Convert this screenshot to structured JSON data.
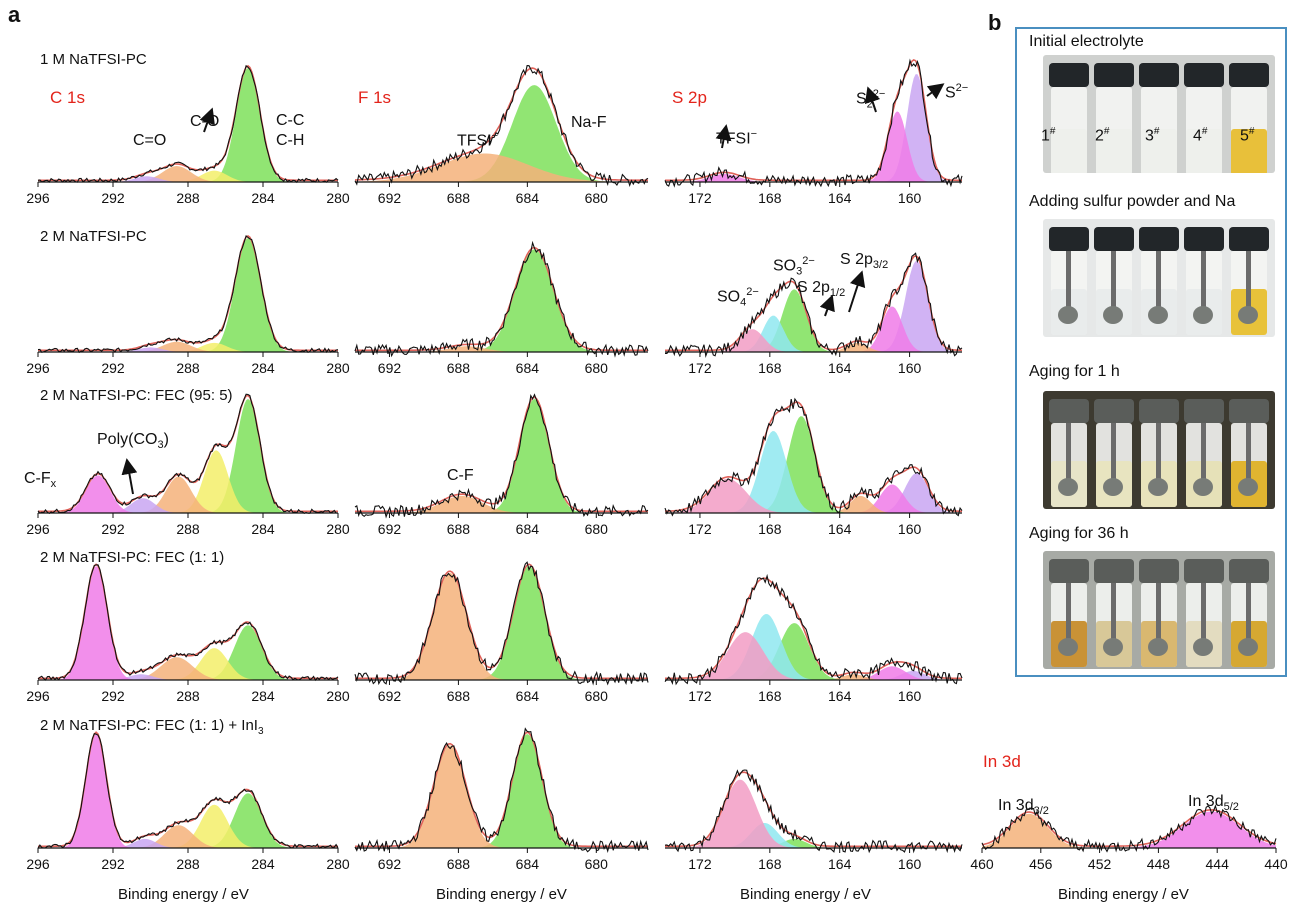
{
  "figure": {
    "panel_a": "a",
    "panel_b": "b"
  },
  "rows": [
    {
      "title": "1 M NaTFSI-PC"
    },
    {
      "title": "2 M NaTFSI-PC"
    },
    {
      "title": "2 M NaTFSI-PC: FEC (95: 5)"
    },
    {
      "title": "2 M NaTFSI-PC: FEC (1: 1)"
    },
    {
      "title": "2 M NaTFSI-PC: FEC (1: 1) + InI",
      "title_sub": "3"
    }
  ],
  "core_labels": {
    "c1s": "C 1s",
    "f1s": "F 1s",
    "s2p": "S 2p",
    "in3d": "In 3d"
  },
  "annotations": {
    "c_eq_o": "C=O",
    "c_o": "C-O",
    "c_c": "C-C",
    "c_h": "C-H",
    "tfsi": "TFSI",
    "tfsi_sup": "−",
    "na_f": "Na-F",
    "tfsi2": "TFSI",
    "s2_main": "S",
    "s2_sub": "2",
    "s2_sup": "2−",
    "s_main": "S",
    "s_sup": "2−",
    "so4_main": "SO",
    "so4_sub": "4",
    "so4_sup": "2−",
    "so3_main": "SO",
    "so3_sub": "3",
    "so3_sup": "2−",
    "s2p12_main": "S 2p",
    "s2p12_sub": "1/2",
    "s2p32_main": "S 2p",
    "s2p32_sub": "3/2",
    "cfx_main": "C-F",
    "cfx_sub": "x",
    "polyco3_main": "Poly(CO",
    "polyco3_sub": "3",
    "polyco3_end": ")",
    "cf": "C-F",
    "in32_main": "In 3d",
    "in32_sub": "3/2",
    "in52_main": "In 3d",
    "in52_sub": "5/2"
  },
  "axes": {
    "c1s_ticks": [
      "296",
      "292",
      "288",
      "284",
      "280"
    ],
    "f1s_ticks": [
      "692",
      "688",
      "684",
      "680"
    ],
    "s2p_ticks": [
      "172",
      "168",
      "164",
      "160"
    ],
    "in3d_ticks": [
      "460",
      "456",
      "452",
      "448",
      "444",
      "440"
    ],
    "xlabel": "Binding energy / eV"
  },
  "photos": {
    "captions": [
      "Initial electrolyte",
      "Adding sulfur powder and Na",
      "Aging for 1 h",
      "Aging for 36 h"
    ],
    "vial_labels": [
      "1",
      "2",
      "3",
      "4",
      "5"
    ],
    "vial_sup": "#"
  },
  "colors": {
    "spectrum": "#111111",
    "envelope": "#e0625a",
    "green": "#7ee05a",
    "magenta": "#f07be8",
    "orange": "#f5b27a",
    "violet": "#c9a6f2",
    "yellow": "#f3ee6a",
    "cyan": "#8fe8f0",
    "pink": "#f29cc4",
    "frame": "#4a8fc0",
    "core_label": "#e3241b"
  },
  "chart_data": [
    {
      "type": "area",
      "panel": "1 M NaTFSI-PC / C 1s",
      "xlim": [
        296,
        280
      ],
      "peaks": [
        {
          "center": 284.8,
          "height": 1.0,
          "fwhm": 1.5,
          "color": "green",
          "label": "C-C / C-H"
        },
        {
          "center": 286.6,
          "height": 0.1,
          "fwhm": 1.6,
          "color": "yellow",
          "label": "C-O"
        },
        {
          "center": 288.6,
          "height": 0.14,
          "fwhm": 1.8,
          "color": "orange",
          "label": "C=O"
        },
        {
          "center": 290.2,
          "height": 0.05,
          "fwhm": 1.5,
          "color": "violet"
        }
      ]
    },
    {
      "type": "area",
      "panel": "1 M NaTFSI-PC / F 1s",
      "xlim": [
        694,
        677
      ],
      "peaks": [
        {
          "center": 683.6,
          "height": 0.85,
          "fwhm": 3.0,
          "color": "green",
          "label": "Na-F"
        },
        {
          "center": 686.5,
          "height": 0.25,
          "fwhm": 6.0,
          "color": "orange",
          "label": "TFSI−"
        }
      ]
    },
    {
      "type": "area",
      "panel": "1 M NaTFSI-PC / S 2p",
      "xlim": [
        174,
        157
      ],
      "peaks": [
        {
          "center": 159.6,
          "height": 0.95,
          "fwhm": 1.3,
          "color": "violet",
          "label": "S2−"
        },
        {
          "center": 160.7,
          "height": 0.62,
          "fwhm": 1.3,
          "color": "magenta",
          "label": "S2 2−"
        },
        {
          "center": 170.6,
          "height": 0.07,
          "fwhm": 2.0,
          "color": "magenta",
          "label": "TFSI−"
        }
      ]
    },
    {
      "type": "area",
      "panel": "2 M NaTFSI-PC / C 1s",
      "xlim": [
        296,
        280
      ],
      "peaks": [
        {
          "center": 284.8,
          "height": 1.0,
          "fwhm": 1.6,
          "color": "green"
        },
        {
          "center": 286.6,
          "height": 0.08,
          "fwhm": 1.6,
          "color": "yellow"
        },
        {
          "center": 288.6,
          "height": 0.09,
          "fwhm": 1.8,
          "color": "orange"
        },
        {
          "center": 290.0,
          "height": 0.04,
          "fwhm": 1.5,
          "color": "violet"
        }
      ]
    },
    {
      "type": "area",
      "panel": "2 M NaTFSI-PC / F 1s",
      "xlim": [
        694,
        677
      ],
      "peaks": [
        {
          "center": 683.6,
          "height": 0.9,
          "fwhm": 2.6,
          "color": "green"
        },
        {
          "center": 687.5,
          "height": 0.05,
          "fwhm": 2.5,
          "color": "orange"
        }
      ]
    },
    {
      "type": "area",
      "panel": "2 M NaTFSI-PC / S 2p",
      "xlim": [
        174,
        157
      ],
      "peaks": [
        {
          "center": 159.6,
          "height": 0.8,
          "fwhm": 1.5,
          "color": "violet",
          "label": "S 2p3/2"
        },
        {
          "center": 161.0,
          "height": 0.4,
          "fwhm": 1.4,
          "color": "magenta"
        },
        {
          "center": 163.0,
          "height": 0.08,
          "fwhm": 1.4,
          "color": "orange",
          "label": "S 2p1/2"
        },
        {
          "center": 166.6,
          "height": 0.55,
          "fwhm": 1.6,
          "color": "green",
          "label": "SO3 2−"
        },
        {
          "center": 167.8,
          "height": 0.32,
          "fwhm": 1.4,
          "color": "cyan"
        },
        {
          "center": 169.0,
          "height": 0.2,
          "fwhm": 1.6,
          "color": "pink",
          "label": "SO4 2−"
        }
      ]
    },
    {
      "type": "area",
      "panel": "2 M NaTFSI-PC: FEC (95: 5) / C 1s",
      "xlim": [
        296,
        280
      ],
      "peaks": [
        {
          "center": 284.8,
          "height": 1.0,
          "fwhm": 1.5,
          "color": "green"
        },
        {
          "center": 286.5,
          "height": 0.55,
          "fwhm": 1.5,
          "color": "yellow"
        },
        {
          "center": 288.5,
          "height": 0.32,
          "fwhm": 1.6,
          "color": "orange"
        },
        {
          "center": 290.4,
          "height": 0.13,
          "fwhm": 1.5,
          "color": "violet",
          "label": "Poly(CO3)"
        },
        {
          "center": 292.8,
          "height": 0.33,
          "fwhm": 1.5,
          "color": "magenta",
          "label": "C-Fx"
        }
      ]
    },
    {
      "type": "area",
      "panel": "2 M NaTFSI-PC: FEC (95: 5) / F 1s",
      "xlim": [
        694,
        677
      ],
      "peaks": [
        {
          "center": 683.6,
          "height": 1.0,
          "fwhm": 2.0,
          "color": "green"
        },
        {
          "center": 687.8,
          "height": 0.15,
          "fwhm": 2.8,
          "color": "orange",
          "label": "C-F"
        }
      ]
    },
    {
      "type": "area",
      "panel": "2 M NaTFSI-PC: FEC (95: 5) / S 2p",
      "xlim": [
        174,
        157
      ],
      "peaks": [
        {
          "center": 159.6,
          "height": 0.35,
          "fwhm": 1.6,
          "color": "violet"
        },
        {
          "center": 161.0,
          "height": 0.25,
          "fwhm": 1.6,
          "color": "magenta"
        },
        {
          "center": 162.8,
          "height": 0.15,
          "fwhm": 1.4,
          "color": "orange"
        },
        {
          "center": 166.2,
          "height": 0.85,
          "fwhm": 1.8,
          "color": "green"
        },
        {
          "center": 167.8,
          "height": 0.72,
          "fwhm": 1.8,
          "color": "cyan"
        },
        {
          "center": 170.4,
          "height": 0.3,
          "fwhm": 2.5,
          "color": "pink"
        }
      ]
    },
    {
      "type": "area",
      "panel": "2 M NaTFSI-PC: FEC (1: 1) / C 1s",
      "xlim": [
        296,
        280
      ],
      "peaks": [
        {
          "center": 284.8,
          "height": 0.48,
          "fwhm": 1.7,
          "color": "green"
        },
        {
          "center": 286.6,
          "height": 0.28,
          "fwhm": 1.7,
          "color": "yellow"
        },
        {
          "center": 288.6,
          "height": 0.2,
          "fwhm": 2.0,
          "color": "orange"
        },
        {
          "center": 290.5,
          "height": 0.05,
          "fwhm": 1.5,
          "color": "violet"
        },
        {
          "center": 292.9,
          "height": 1.0,
          "fwhm": 1.4,
          "color": "magenta"
        }
      ]
    },
    {
      "type": "area",
      "panel": "2 M NaTFSI-PC: FEC (1: 1) / F 1s",
      "xlim": [
        694,
        677
      ],
      "peaks": [
        {
          "center": 683.9,
          "height": 1.0,
          "fwhm": 2.1,
          "color": "green"
        },
        {
          "center": 688.5,
          "height": 0.94,
          "fwhm": 2.3,
          "color": "orange"
        }
      ]
    },
    {
      "type": "area",
      "panel": "2 M NaTFSI-PC: FEC (1: 1) / S 2p",
      "xlim": [
        174,
        157
      ],
      "peaks": [
        {
          "center": 159.8,
          "height": 0.08,
          "fwhm": 1.6,
          "color": "violet"
        },
        {
          "center": 161.0,
          "height": 0.12,
          "fwhm": 1.8,
          "color": "magenta"
        },
        {
          "center": 163.2,
          "height": 0.05,
          "fwhm": 1.5,
          "color": "orange"
        },
        {
          "center": 166.6,
          "height": 0.5,
          "fwhm": 2.0,
          "color": "green"
        },
        {
          "center": 168.2,
          "height": 0.58,
          "fwhm": 2.0,
          "color": "cyan"
        },
        {
          "center": 169.4,
          "height": 0.42,
          "fwhm": 2.4,
          "color": "pink"
        }
      ]
    },
    {
      "type": "area",
      "panel": "2 M NaTFSI-PC: FEC (1: 1) + InI3 / C 1s",
      "xlim": [
        296,
        280
      ],
      "peaks": [
        {
          "center": 284.8,
          "height": 0.48,
          "fwhm": 1.7,
          "color": "green"
        },
        {
          "center": 286.6,
          "height": 0.38,
          "fwhm": 1.7,
          "color": "yellow"
        },
        {
          "center": 288.5,
          "height": 0.2,
          "fwhm": 1.8,
          "color": "orange"
        },
        {
          "center": 290.3,
          "height": 0.08,
          "fwhm": 1.4,
          "color": "violet"
        },
        {
          "center": 292.9,
          "height": 1.0,
          "fwhm": 1.3,
          "color": "magenta"
        }
      ]
    },
    {
      "type": "area",
      "panel": "2 M NaTFSI-PC: FEC (1: 1) + InI3 / F 1s",
      "xlim": [
        694,
        677
      ],
      "peaks": [
        {
          "center": 684.0,
          "height": 1.0,
          "fwhm": 2.0,
          "color": "green"
        },
        {
          "center": 688.5,
          "height": 0.9,
          "fwhm": 2.2,
          "color": "orange"
        }
      ]
    },
    {
      "type": "area",
      "panel": "2 M NaTFSI-PC: FEC (1: 1) + InI3 / S 2p",
      "xlim": [
        174,
        157
      ],
      "peaks": [
        {
          "center": 166.6,
          "height": 0.08,
          "fwhm": 1.6,
          "color": "green"
        },
        {
          "center": 168.3,
          "height": 0.22,
          "fwhm": 1.8,
          "color": "cyan"
        },
        {
          "center": 169.7,
          "height": 0.6,
          "fwhm": 2.2,
          "color": "pink"
        }
      ]
    },
    {
      "type": "area",
      "panel": "In 3d",
      "xlim": [
        460,
        440
      ],
      "peaks": [
        {
          "center": 456.8,
          "height": 0.3,
          "fwhm": 3.0,
          "color": "orange",
          "label": "In 3d3/2"
        },
        {
          "center": 444.4,
          "height": 0.32,
          "fwhm": 4.5,
          "color": "magenta",
          "label": "In 3d5/2"
        }
      ]
    }
  ]
}
